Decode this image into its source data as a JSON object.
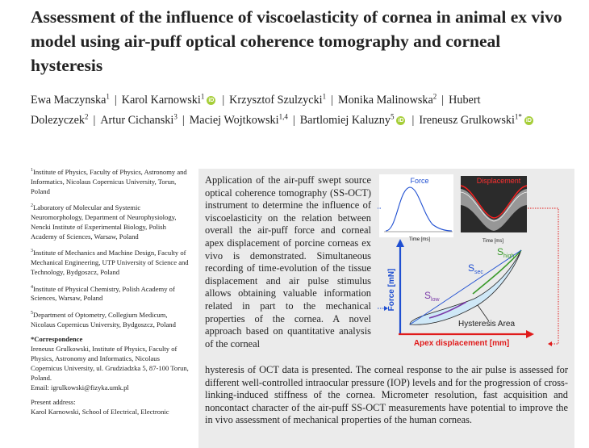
{
  "title": "Assessment of the influence of viscoelasticity of cornea in animal ex vivo model using air-puff optical coherence tomography and corneal hysteresis",
  "authors": [
    {
      "name": "Ewa Maczynska",
      "sup": "1",
      "orcid": false
    },
    {
      "name": "Karol Karnowski",
      "sup": "1",
      "orcid": true
    },
    {
      "name": "Krzysztof Szulzycki",
      "sup": "1",
      "orcid": false
    },
    {
      "name": "Monika Malinowska",
      "sup": "2",
      "orcid": false
    },
    {
      "name": "Hubert Dolezyczek",
      "sup": "2",
      "orcid": false
    },
    {
      "name": "Artur Cichanski",
      "sup": "3",
      "orcid": false
    },
    {
      "name": "Maciej Wojtkowski",
      "sup": "1,4",
      "orcid": false
    },
    {
      "name": "Bartlomiej Kaluzny",
      "sup": "5",
      "orcid": true
    },
    {
      "name": "Ireneusz Grulkowski",
      "sup": "1*",
      "orcid": true
    }
  ],
  "affiliations": [
    {
      "num": "1",
      "text": "Institute of Physics, Faculty of Physics, Astronomy and Informatics, Nicolaus Copernicus University, Torun, Poland"
    },
    {
      "num": "2",
      "text": "Laboratory of Molecular and Systemic Neuromorphology, Department of Neurophysiology, Nencki Institute of Experimental Biology, Polish Academy of Sciences, Warsaw, Poland"
    },
    {
      "num": "3",
      "text": "Institute of Mechanics and Machine Design, Faculty of Mechanical Engineering, UTP University of Science and Technology, Bydgoszcz, Poland"
    },
    {
      "num": "4",
      "text": "Institute of Physical Chemistry, Polish Academy of Sciences, Warsaw, Poland"
    },
    {
      "num": "5",
      "text": "Department of Optometry, Collegium Medicum, Nicolaus Copernicus University, Bydgoszcz, Poland"
    }
  ],
  "correspondence": {
    "heading": "*Correspondence",
    "text": "Ireneusz Grulkowski, Institute of Physics, Faculty of Physics, Astronomy and Informatics, Nicolaus Copernicus University, ul. Grudziadzka 5, 87-100 Torun, Poland.",
    "email": "Email: igrulkowski@fizyka.umk.pl"
  },
  "present_address": {
    "heading": "Present address:",
    "text": "Karol Karnowski, School of Electrical, Electronic"
  },
  "abstract_top": "Application of the air-puff swept source optical coherence tomography (SS-OCT) instrument to determine the influence of viscoelasticity on the relation between overall the air-puff force and corneal apex displacement of porcine corneas ex vivo is demonstrated. Simultaneous recording of time-evolution of the tissue displacement and air pulse stimulus allows obtaining valuable information related in part to the mechanical properties of the cornea. A novel approach based on quantitative analysis of the corneal",
  "abstract_bottom": "hysteresis of OCT data is presented. The corneal response to the air pulse is assessed for different well-controlled intraocular pressure (IOP) levels and for the progression of cross-linking-induced stiffness of the cornea. Micrometer resolution, fast acquisition and noncontact character of the air-puff SS-OCT measurements have potential to improve the in vivo assessment of mechanical properties of the human corneas.",
  "figure": {
    "force_title": "Force",
    "displacement_title": "Displacement",
    "time_label_1": "Time [ms]",
    "time_label_2": "Time [ms]",
    "y_axis_label": "Force [mN]",
    "x_axis_label": "Apex displacement [mm]",
    "s_sec": "S",
    "s_sec_sub": "sec",
    "s_high": "S",
    "s_high_sub": "high",
    "s_low": "S",
    "s_low_sub": "low",
    "hysteresis_label": "Hysteresis Area",
    "colors": {
      "blue": "#1f4fd1",
      "red": "#e01b1b",
      "fill": "#cfe8f7",
      "green": "#3a9a2a",
      "purple": "#7a3aa8"
    }
  }
}
